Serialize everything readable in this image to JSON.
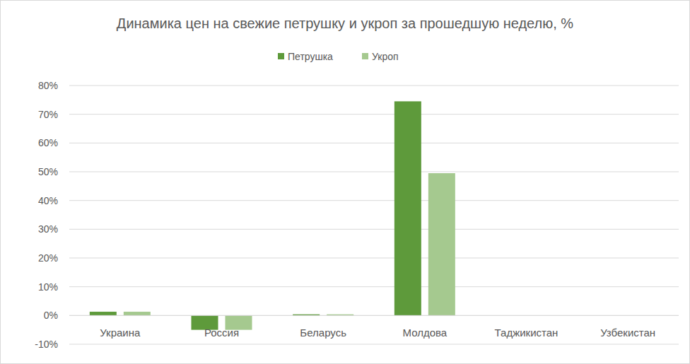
{
  "chart_data": {
    "type": "bar",
    "title": "Динамика цен на свежие петрушку и укроп за прошедшую неделю, %",
    "categories": [
      "Украина",
      "Россия",
      "Беларусь",
      "Молдова",
      "Таджикистан",
      "Узбекистан"
    ],
    "series": [
      {
        "name": "Петрушка",
        "color": "#5e9a3b",
        "values": [
          1.3,
          -5,
          0.4,
          74.5,
          0,
          0
        ]
      },
      {
        "name": "Укроп",
        "color": "#a5c98f",
        "values": [
          1.3,
          -5,
          0.4,
          49.5,
          0,
          0
        ]
      }
    ],
    "ylim": [
      -10,
      80
    ],
    "yticks": [
      {
        "value": -10,
        "label": "-10%"
      },
      {
        "value": 0,
        "label": "0%"
      },
      {
        "value": 10,
        "label": "10%"
      },
      {
        "value": 20,
        "label": "20%"
      },
      {
        "value": 30,
        "label": "30%"
      },
      {
        "value": 40,
        "label": "40%"
      },
      {
        "value": 50,
        "label": "50%"
      },
      {
        "value": 60,
        "label": "60%"
      },
      {
        "value": 70,
        "label": "70%"
      },
      {
        "value": 80,
        "label": "80%"
      }
    ],
    "grid": true,
    "legend": "top"
  }
}
